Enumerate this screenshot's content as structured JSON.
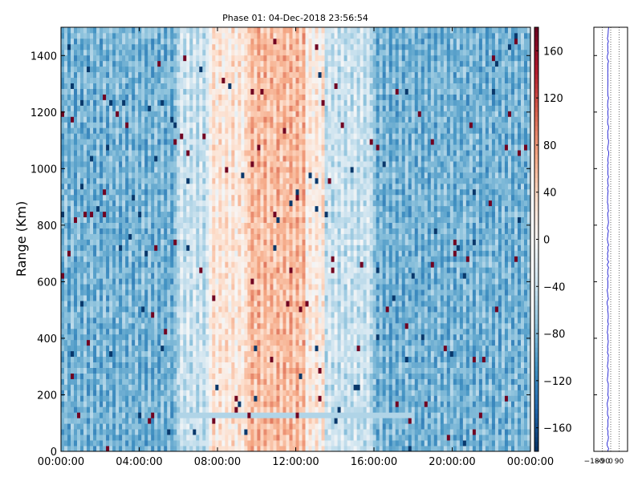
{
  "chart_data": [
    {
      "type": "heatmap",
      "title": "Phase 01: 04-Dec-2018 23:56:54",
      "xlabel": "",
      "ylabel": "Range (Km)",
      "x_ticks": [
        "00:00:00",
        "04:00:00",
        "08:00:00",
        "12:00:00",
        "16:00:00",
        "20:00:00",
        "00:00:00"
      ],
      "y_ticks": [
        0,
        200,
        400,
        600,
        800,
        1000,
        1200,
        1400
      ],
      "ylim": [
        0,
        1500
      ],
      "x_range_hours": [
        0,
        24
      ],
      "colorbar": {
        "ticks": [
          160,
          120,
          80,
          40,
          0,
          -40,
          -80,
          -120,
          -160
        ],
        "range": [
          -180,
          180
        ],
        "colormap": "RdBu_r",
        "color_low": "#053061",
        "color_mid": "#f7f7f7",
        "color_high": "#67001f"
      },
      "pattern": {
        "background_phase": -85,
        "warm_band_hours": [
          9.5,
          12.5
        ],
        "warm_band_phase": 55,
        "transition_hours": [
          6.0,
          16.0
        ],
        "light_stripe_range_km": [
          110,
          140
        ],
        "light_stripe_hours": [
          6.0,
          18.0
        ]
      }
    },
    {
      "type": "line",
      "x_ticks": [
        -180,
        -90,
        0,
        90
      ],
      "xlim": [
        -180,
        180
      ],
      "ylim": [
        0,
        1500
      ],
      "grid_x": true,
      "series": [
        {
          "color": "#0000cc",
          "mean_phase": -30
        }
      ]
    }
  ]
}
